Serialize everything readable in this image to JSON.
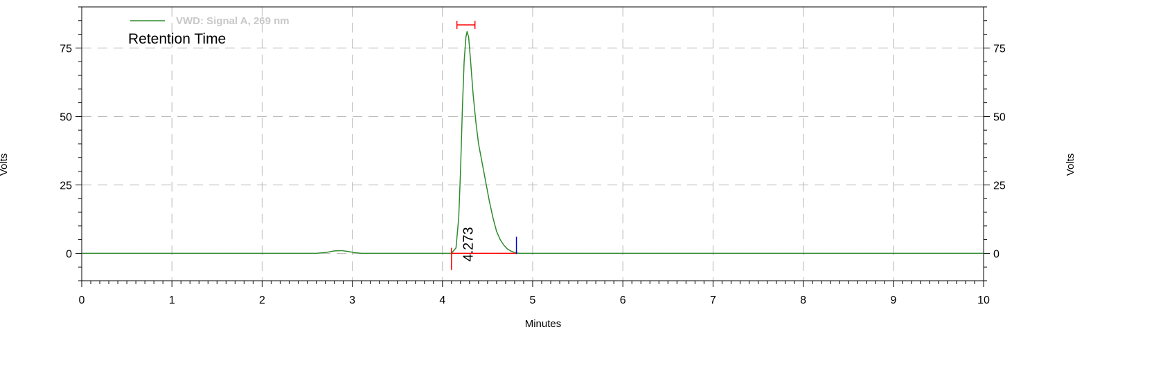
{
  "chart_data": {
    "type": "line",
    "subtitle": "Retention Time",
    "xlabel": "Minutes",
    "ylabel_left": "Volts",
    "ylabel_right": "Volts",
    "xlim": [
      0,
      10
    ],
    "ylim": [
      -10,
      90
    ],
    "x_ticks": [
      "0",
      "1",
      "2",
      "3",
      "4",
      "5",
      "6",
      "7",
      "8",
      "9",
      "10"
    ],
    "y_ticks": [
      "0",
      "25",
      "50",
      "75"
    ],
    "grid": true,
    "legend_position": "top-left",
    "series": [
      {
        "name": "VWD: Signal A, 269 nm",
        "color": "#2e8b2e",
        "x": [
          0,
          2.6,
          2.72,
          2.8,
          2.88,
          2.95,
          3.02,
          3.1,
          3.5,
          4.1,
          4.15,
          4.18,
          4.2,
          4.22,
          4.24,
          4.26,
          4.273,
          4.29,
          4.31,
          4.34,
          4.37,
          4.4,
          4.44,
          4.48,
          4.52,
          4.56,
          4.6,
          4.64,
          4.68,
          4.72,
          4.76,
          4.8,
          4.85,
          5.0,
          6.0,
          8.0,
          10.0
        ],
        "y": [
          0,
          0,
          0.4,
          0.9,
          1.0,
          0.7,
          0.3,
          0,
          0,
          0,
          2,
          13,
          30,
          52,
          70,
          79,
          81,
          79,
          71,
          58,
          48,
          40,
          33,
          26,
          19,
          13,
          8,
          5,
          3,
          1.6,
          0.8,
          0.3,
          0,
          0,
          0,
          0,
          0
        ]
      }
    ],
    "annotations": [
      {
        "text": "4.273",
        "x": 4.273,
        "y": 0
      }
    ],
    "baseline": {
      "x_start": 4.1,
      "x_end": 4.82,
      "color": "#ff0000"
    },
    "peak_start_x": 4.1,
    "peak_end_x": 4.82,
    "window": {
      "x_start": 4.16,
      "x_end": 4.36
    },
    "marker_colors": {
      "start": "#ff0000",
      "end": "#0000cc",
      "window": "#ff0000"
    }
  }
}
